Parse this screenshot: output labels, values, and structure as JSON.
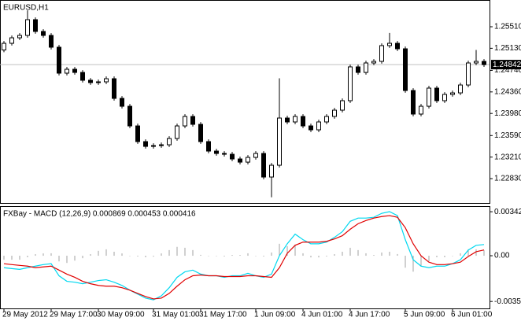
{
  "chart_data": [
    {
      "type": "candlestick",
      "title": "EURUSD,H1",
      "color": "#000000",
      "up_color": "#ffffff",
      "ylim": [
        1.224,
        1.25982
      ],
      "yticks": [
        {
          "value": 1.2551,
          "label": "1.25510"
        },
        {
          "value": 1.2513,
          "label": "1.25130"
        },
        {
          "value": 1.2474,
          "label": "1.24740"
        },
        {
          "value": 1.2436,
          "label": "1.24360"
        },
        {
          "value": 1.2398,
          "label": "1.23980"
        },
        {
          "value": 1.2359,
          "label": "1.23590"
        },
        {
          "value": 1.2321,
          "label": "1.23210"
        },
        {
          "value": 1.2283,
          "label": "1.22830"
        }
      ],
      "current_price": 1.24842,
      "open": [
        1.251,
        1.25218,
        1.25315,
        1.25357,
        1.25635,
        1.25427,
        1.25357,
        1.25149,
        1.24691,
        1.2476,
        1.24704,
        1.24566,
        1.24524,
        1.24538,
        1.24593,
        1.24246,
        1.24107,
        1.2376,
        1.23483,
        1.23399,
        1.23413,
        1.23427,
        1.23538,
        1.2376,
        1.23927,
        1.23788,
        1.23483,
        1.23316,
        1.23274,
        1.2326,
        1.23177,
        1.23121,
        1.23205,
        1.23274,
        1.22858,
        1.23066,
        1.23899,
        1.2383,
        1.23927,
        1.2376,
        1.23691,
        1.2383,
        1.23927,
        1.24038,
        1.24205,
        1.24802,
        1.24704,
        1.24871,
        1.24899,
        1.25177,
        1.25218,
        1.25121,
        1.24385,
        1.23969,
        1.24107,
        1.24427,
        1.24205,
        1.24316,
        1.24343,
        1.24482,
        1.24871,
        1.24899
      ],
      "high": [
        1.25258,
        1.25355,
        1.25397,
        1.258,
        1.25675,
        1.25467,
        1.25397,
        1.25189,
        1.248,
        1.248,
        1.24744,
        1.24606,
        1.24578,
        1.24633,
        1.24633,
        1.24286,
        1.24147,
        1.238,
        1.23523,
        1.23453,
        1.23467,
        1.23578,
        1.238,
        1.23967,
        1.23967,
        1.23828,
        1.23523,
        1.23356,
        1.23314,
        1.233,
        1.23217,
        1.23245,
        1.23314,
        1.23314,
        1.23106,
        1.246,
        1.23939,
        1.23967,
        1.23967,
        1.238,
        1.2387,
        1.23967,
        1.24078,
        1.24245,
        1.24842,
        1.24842,
        1.24911,
        1.24939,
        1.25217,
        1.254,
        1.25258,
        1.25161,
        1.24425,
        1.24147,
        1.24467,
        1.24467,
        1.24356,
        1.24383,
        1.24522,
        1.24911,
        1.251,
        1.24939
      ],
      "low": [
        1.2506,
        1.25178,
        1.25275,
        1.25317,
        1.25387,
        1.25317,
        1.25109,
        1.24651,
        1.24651,
        1.24664,
        1.24526,
        1.24484,
        1.24484,
        1.24498,
        1.24206,
        1.24067,
        1.2372,
        1.23443,
        1.23359,
        1.23359,
        1.23373,
        1.23387,
        1.23498,
        1.2372,
        1.23748,
        1.23443,
        1.23276,
        1.23234,
        1.2322,
        1.23137,
        1.23081,
        1.23081,
        1.23165,
        1.22818,
        1.225,
        1.23026,
        1.2379,
        1.2379,
        1.2372,
        1.23651,
        1.23651,
        1.2379,
        1.23887,
        1.23998,
        1.24165,
        1.24664,
        1.24664,
        1.24831,
        1.24859,
        1.25137,
        1.25081,
        1.24345,
        1.23929,
        1.23929,
        1.24067,
        1.24165,
        1.24165,
        1.24276,
        1.24303,
        1.24442,
        1.24831,
        1.24802
      ],
      "close": [
        1.25218,
        1.25315,
        1.25357,
        1.25635,
        1.25427,
        1.25357,
        1.25149,
        1.24691,
        1.2476,
        1.24704,
        1.24566,
        1.24524,
        1.24538,
        1.24593,
        1.24246,
        1.24107,
        1.2376,
        1.23483,
        1.23399,
        1.23413,
        1.23427,
        1.23538,
        1.2376,
        1.23927,
        1.23788,
        1.23483,
        1.23316,
        1.23274,
        1.2326,
        1.23177,
        1.23121,
        1.23205,
        1.23274,
        1.22858,
        1.23066,
        1.23899,
        1.2383,
        1.23927,
        1.2376,
        1.23691,
        1.2383,
        1.23927,
        1.24038,
        1.24205,
        1.24802,
        1.24704,
        1.24871,
        1.24899,
        1.25177,
        1.25218,
        1.25121,
        1.24385,
        1.23969,
        1.24107,
        1.24427,
        1.24205,
        1.24316,
        1.24343,
        1.24482,
        1.24871,
        1.24899,
        1.24842
      ]
    },
    {
      "type": "macd",
      "title": "FXBay - MACD (12,26,9) 0.000869 0.000453 0.000416",
      "ylim": [
        -0.0041,
        0.00386
      ],
      "yticks": [
        0.003424,
        {
          "value": 0,
          "label": "0.00"
        },
        -0.00356
      ],
      "categories": [
        "29 May 2012",
        null,
        null,
        null,
        null,
        null,
        "29 May 17:00",
        null,
        null,
        null,
        null,
        null,
        "30 May 09:00",
        null,
        null,
        null,
        null,
        null,
        null,
        "31 May 01:00",
        null,
        null,
        null,
        null,
        null,
        "31 May 17:00",
        null,
        null,
        null,
        null,
        null,
        null,
        "1 Jun 09:00",
        null,
        null,
        null,
        null,
        null,
        "4 Jun 01:00",
        null,
        null,
        null,
        null,
        null,
        "4 Jun 17:00",
        null,
        null,
        null,
        null,
        null,
        null,
        "5 Jun 09:00",
        null,
        null,
        null,
        null,
        null,
        "6 Jun 01:00",
        null,
        null,
        null,
        null
      ],
      "series": [
        {
          "type": "bar",
          "color": "#a0a0a0",
          "values": [
            -0.00031,
            -0.00031,
            -0.00031,
            -0.00012,
            0.00012,
            0.00018,
            0.00019,
            -0.00044,
            -0.00056,
            -0.00038,
            -0.00019,
            0.00012,
            0.00038,
            0.0005,
            0.00031,
            0.00018,
            0,
            -6e-05,
            -0.00012,
            -7e-05,
            0.00018,
            0.00044,
            0.00069,
            0.00062,
            0.00044,
            7e-05,
            0,
            0,
            -6e-05,
            6e-05,
            6e-05,
            0.00019,
            0,
            -6e-05,
            0.00025,
            0.00093,
            0.00074,
            0.00087,
            0.00019,
            -0.00013,
            -0.00013,
            -6e-05,
            0.00012,
            0.00031,
            0.00062,
            0.00044,
            0.00019,
            6e-05,
            0.00025,
            0.00031,
            0.00013,
            -0.00093,
            -0.00124,
            -0.00081,
            -0.00043,
            -0.00012,
            -0.00012,
            0,
            0.00019,
            0.0005,
            0.0005,
            0.00042
          ]
        },
        {
          "type": "line",
          "color": "#00d8f0",
          "values": [
            -0.00093,
            -0.001,
            -0.00106,
            -0.00093,
            -0.00081,
            -0.00069,
            -0.00062,
            -0.00156,
            -0.00199,
            -0.00206,
            -0.00218,
            -0.00206,
            -0.00193,
            -0.00187,
            -0.00206,
            -0.00231,
            -0.00268,
            -0.00299,
            -0.0033,
            -0.00343,
            -0.00312,
            -0.00249,
            -0.00168,
            -0.00125,
            -0.00112,
            -0.00143,
            -0.00156,
            -0.00156,
            -0.00168,
            -0.00156,
            -0.00156,
            -0.00137,
            -0.00156,
            -0.00168,
            -0.00143,
            0,
            0.00093,
            0.00168,
            0.00125,
            0.00093,
            0.00093,
            0.00106,
            0.00143,
            0.00187,
            0.00268,
            0.00293,
            0.00293,
            0.00299,
            0.0033,
            0.00343,
            0.00312,
            0.00125,
            -0.00031,
            -0.00081,
            -0.00093,
            -0.00081,
            -0.00081,
            -0.00062,
            -0.00031,
            0.00044,
            0.00081,
            0.00087
          ]
        },
        {
          "type": "line",
          "color": "#e00000",
          "values": [
            -0.00062,
            -0.00069,
            -0.00075,
            -0.00081,
            -0.00093,
            -0.00087,
            -0.00081,
            -0.00112,
            -0.00143,
            -0.00168,
            -0.00199,
            -0.00218,
            -0.00231,
            -0.00237,
            -0.00237,
            -0.00249,
            -0.00268,
            -0.00293,
            -0.00318,
            -0.00336,
            -0.0033,
            -0.00293,
            -0.00237,
            -0.00187,
            -0.00156,
            -0.0015,
            -0.00156,
            -0.00156,
            -0.00162,
            -0.00162,
            -0.00162,
            -0.00156,
            -0.00156,
            -0.00162,
            -0.00168,
            -0.00093,
            0.00019,
            0.00081,
            0.00106,
            0.00106,
            0.00106,
            0.00112,
            0.00131,
            0.00156,
            0.00206,
            0.00249,
            0.00274,
            0.00293,
            0.00305,
            0.00312,
            0.00299,
            0.00218,
            0.00093,
            0,
            -0.0005,
            -0.00069,
            -0.00069,
            -0.00062,
            -0.0005,
            -6e-05,
            0.00031,
            0.00045
          ]
        }
      ]
    }
  ]
}
